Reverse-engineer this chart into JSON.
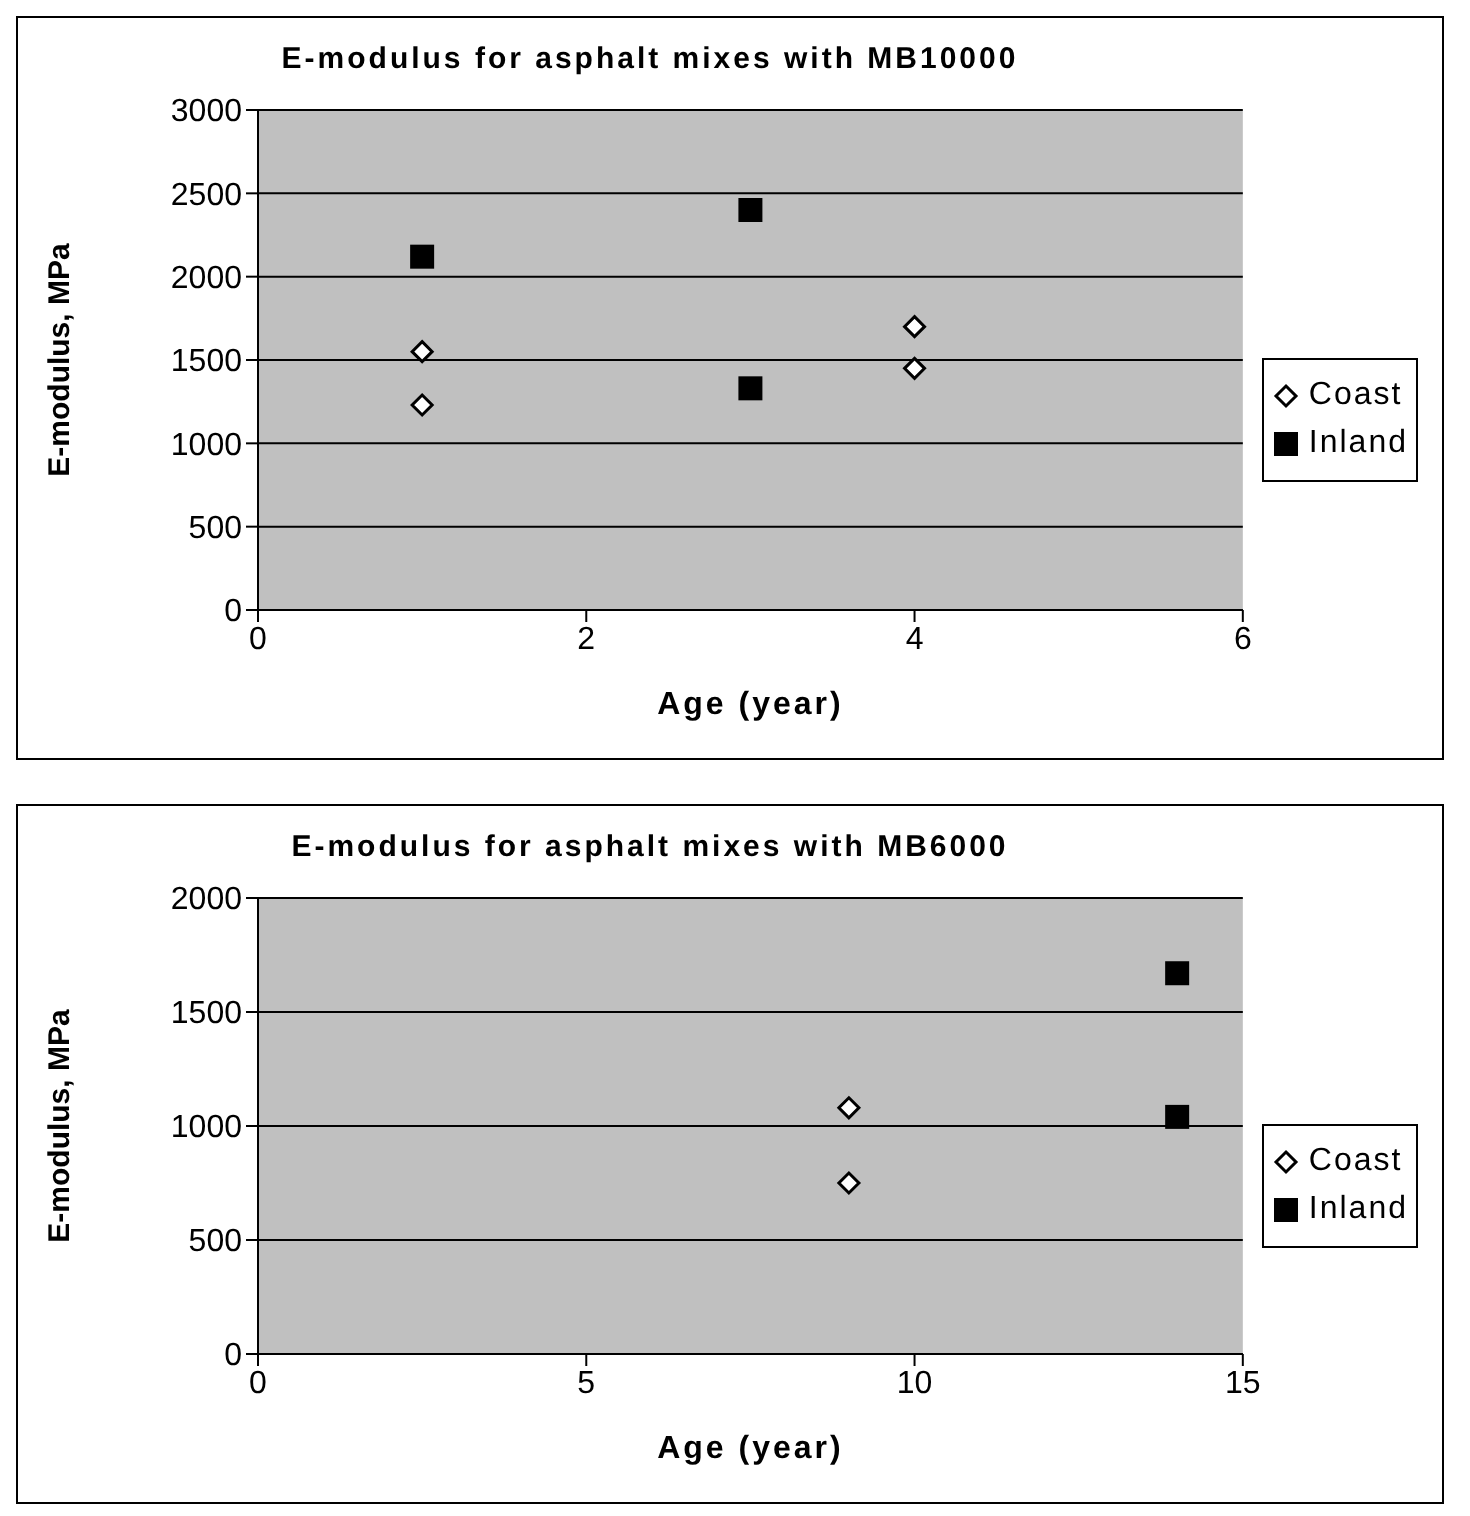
{
  "chart_data": [
    {
      "type": "scatter",
      "title": "E-modulus for asphalt mixes with MB10000",
      "xlabel": "Age (year)",
      "ylabel": "E-modulus, MPa",
      "xlim": [
        0,
        6
      ],
      "xticks": [
        0,
        2,
        4,
        6
      ],
      "ylim": [
        0,
        3000
      ],
      "yticks": [
        0,
        500,
        1000,
        1500,
        2000,
        2500,
        3000
      ],
      "grid": "y",
      "legend": "right",
      "series": [
        {
          "name": "Coast",
          "color": "#000000",
          "marker": "diamond",
          "x": [
            1,
            1,
            4,
            4
          ],
          "values": [
            1550,
            1230,
            1700,
            1450
          ]
        },
        {
          "name": "Inland",
          "color": "#000000",
          "marker": "square",
          "x": [
            1,
            3,
            3
          ],
          "values": [
            2120,
            2400,
            1330
          ]
        }
      ]
    },
    {
      "type": "scatter",
      "title": "E-modulus for asphalt mixes with MB6000",
      "xlabel": "Age (year)",
      "ylabel": "E-modulus, MPa",
      "xlim": [
        0,
        15
      ],
      "xticks": [
        0,
        5,
        10,
        15
      ],
      "ylim": [
        0,
        2000
      ],
      "yticks": [
        0,
        500,
        1000,
        1500,
        2000
      ],
      "grid": "y",
      "legend": "right",
      "series": [
        {
          "name": "Coast",
          "color": "#000000",
          "marker": "diamond",
          "x": [
            9,
            9
          ],
          "values": [
            1080,
            750
          ]
        },
        {
          "name": "Inland",
          "color": "#000000",
          "marker": "square",
          "x": [
            14,
            14
          ],
          "values": [
            1670,
            1040
          ]
        }
      ]
    }
  ]
}
